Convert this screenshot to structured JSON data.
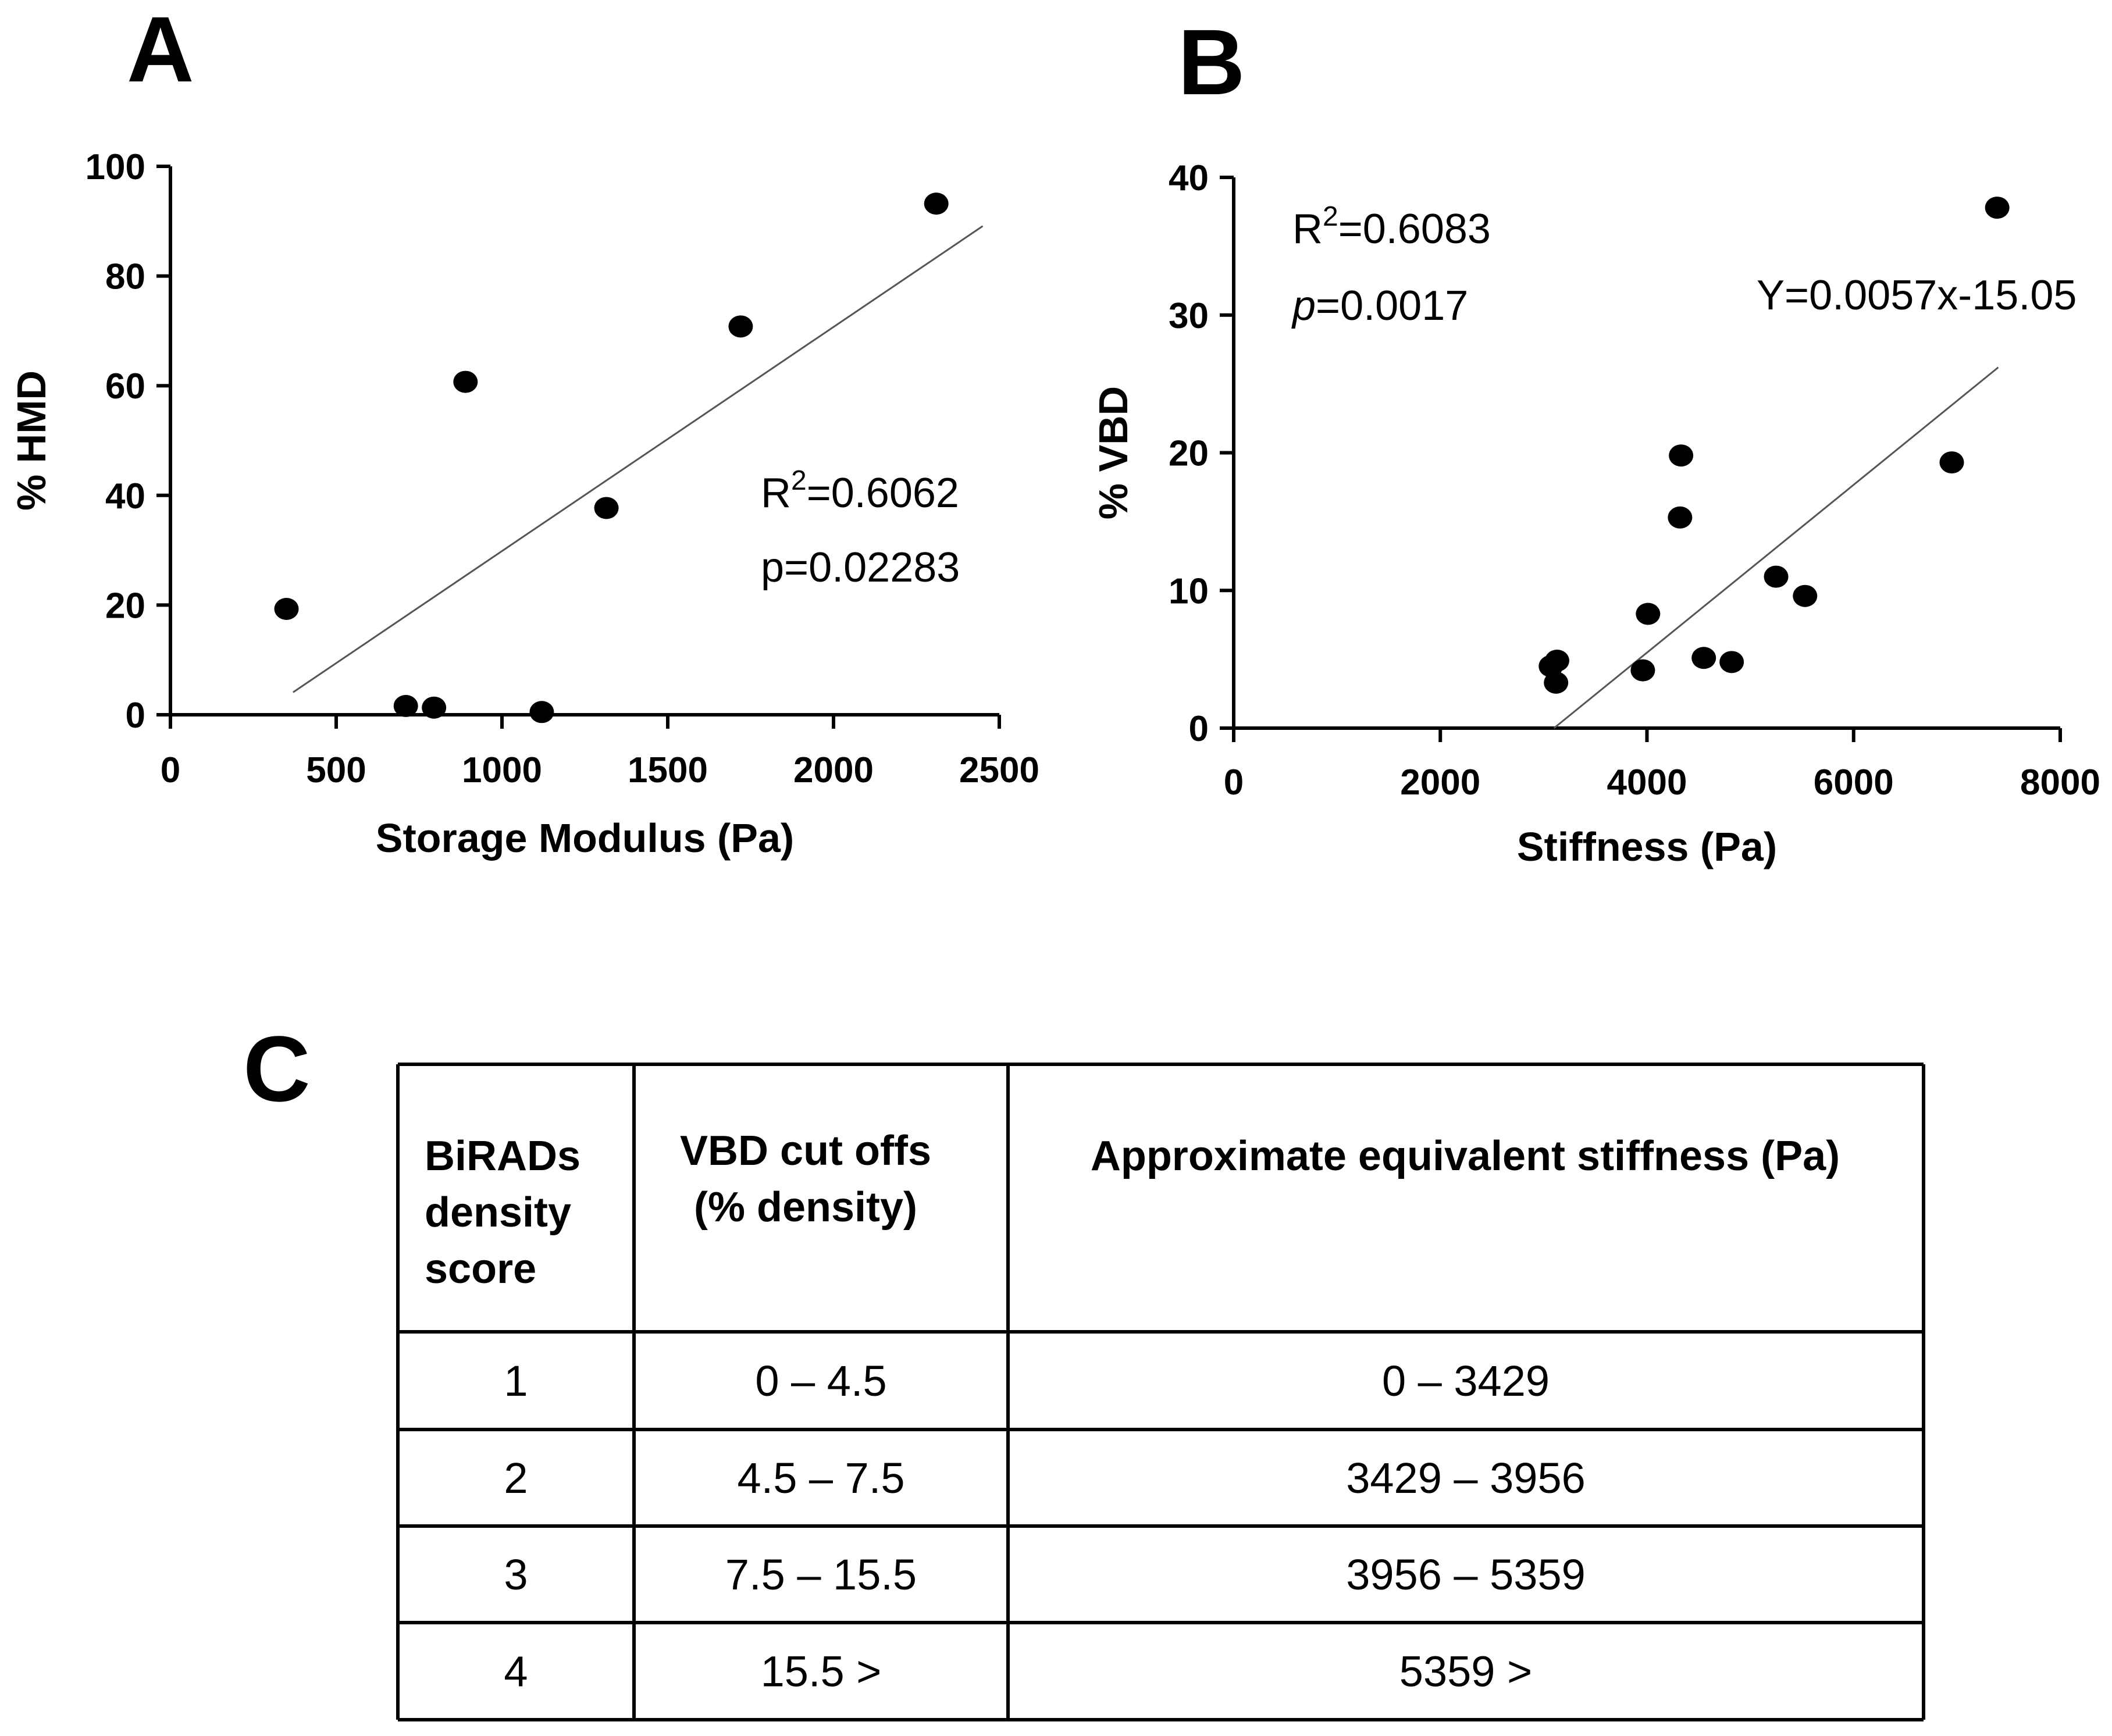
{
  "chart_data": [
    {
      "panel": "A",
      "type": "scatter",
      "title": "",
      "xlabel": "Storage Modulus (Pa)",
      "ylabel": "% HMD",
      "xlim": [
        0,
        2500
      ],
      "ylim": [
        0,
        100
      ],
      "xticks": [
        "0",
        "500",
        "1000",
        "1500",
        "2000",
        "2500"
      ],
      "yticks": [
        "0",
        "20",
        "40",
        "60",
        "80",
        "100"
      ],
      "x": [
        350,
        710,
        795,
        890,
        1120,
        1315,
        1720,
        2310
      ],
      "y": [
        19.3,
        1.6,
        1.3,
        60.7,
        0.5,
        37.7,
        70.8,
        93.2
      ],
      "fit_line": {
        "x": [
          370,
          2450
        ],
        "y": [
          4.1,
          89.1
        ]
      },
      "annotations": {
        "r2_prefix": "R",
        "r2_sup": "2",
        "r2_value": "=0.6062",
        "p_label": "p=0.02283"
      }
    },
    {
      "panel": "B",
      "type": "scatter",
      "title": "",
      "xlabel": "Stiffness (Pa)",
      "ylabel": "% VBD",
      "xlim": [
        0,
        8000
      ],
      "ylim": [
        0,
        40
      ],
      "xticks": [
        "0",
        "2000",
        "4000",
        "6000",
        "8000"
      ],
      "yticks": [
        "0",
        "10",
        "20",
        "30",
        "40"
      ],
      "x": [
        3070,
        3130,
        3120,
        3960,
        4010,
        4320,
        4330,
        4550,
        4820,
        5250,
        5530,
        6950,
        7390
      ],
      "y": [
        4.5,
        4.9,
        3.3,
        4.2,
        8.3,
        15.3,
        19.8,
        5.1,
        4.8,
        11.0,
        9.6,
        19.3,
        37.8
      ],
      "fit_line": {
        "x": [
          3100,
          7400
        ],
        "y": [
          0.0,
          26.2
        ]
      },
      "annotations": {
        "r2_prefix": "R",
        "r2_sup": "2",
        "r2_value": "=0.6083",
        "p_italic": "p",
        "p_value": "=0.0017",
        "equation": "Y=0.0057x-15.05"
      }
    }
  ],
  "table": {
    "panel": "C",
    "headers": [
      [
        "BiRADs",
        "density",
        "score"
      ],
      [
        "VBD cut offs",
        "(% density)"
      ],
      [
        "Approximate  equivalent stiffness (Pa)"
      ]
    ],
    "rows": [
      [
        "1",
        "0 – 4.5",
        "0 – 3429"
      ],
      [
        "2",
        "4.5 – 7.5",
        "3429 – 3956"
      ],
      [
        "3",
        "7.5 – 15.5",
        "3956 – 5359"
      ],
      [
        "4",
        "15.5 >",
        "5359 >"
      ]
    ]
  }
}
